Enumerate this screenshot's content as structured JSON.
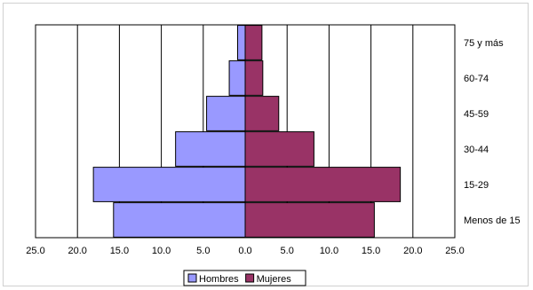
{
  "chart_data": {
    "type": "bar",
    "orientation": "horizontal-diverging",
    "categories": [
      "Menos de 15",
      "15-29",
      "30-44",
      "45-59",
      "60-74",
      "75 y más"
    ],
    "series": [
      {
        "name": "Hombres",
        "values": [
          15.7,
          18.1,
          8.3,
          4.6,
          1.9,
          0.9
        ],
        "color": "#9999FF"
      },
      {
        "name": "Mujeres",
        "values": [
          15.4,
          18.5,
          8.2,
          4.0,
          2.1,
          2.0
        ],
        "color": "#993366"
      }
    ],
    "x_ticks": [
      "25.0",
      "20.0",
      "15.0",
      "10.0",
      "5.0",
      "0.0",
      "5.0",
      "10.0",
      "15.0",
      "20.0",
      "25.0"
    ],
    "xlim": [
      -25,
      25
    ],
    "grid": true,
    "legend": "bottom-center",
    "title": "",
    "xlabel": "",
    "ylabel": ""
  }
}
